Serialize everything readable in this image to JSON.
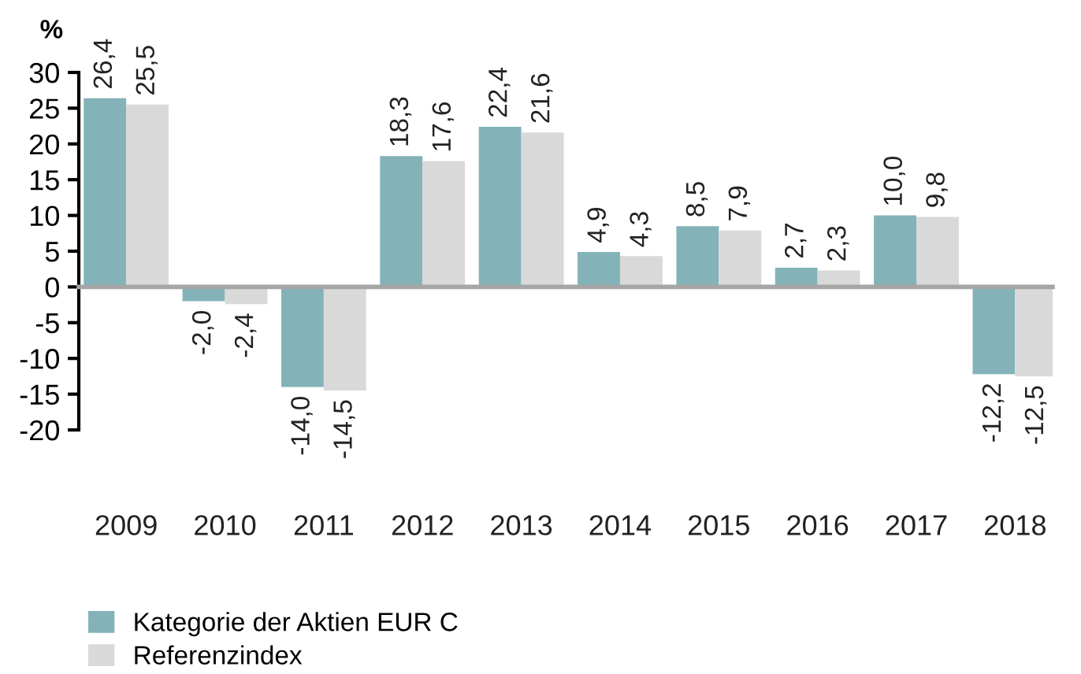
{
  "chart_data": {
    "type": "bar",
    "ylabel": "%",
    "categories": [
      "2009",
      "2010",
      "2011",
      "2012",
      "2013",
      "2014",
      "2015",
      "2016",
      "2017",
      "2018"
    ],
    "ylim": [
      -20,
      30
    ],
    "yticks": [
      -20,
      -15,
      -10,
      -5,
      0,
      5,
      10,
      15,
      20,
      25,
      30
    ],
    "series": [
      {
        "name": "Kategorie der Aktien EUR C",
        "color": "#83b3b9",
        "values": [
          26.4,
          -2.0,
          -14.0,
          18.3,
          22.4,
          4.9,
          8.5,
          2.7,
          10.0,
          -12.2
        ],
        "value_labels": [
          "26,4",
          "-2,0",
          "-14,0",
          "18,3",
          "22,4",
          "4,9",
          "8,5",
          "2,7",
          "10,0",
          "-12,2"
        ]
      },
      {
        "name": "Referenzindex",
        "color": "#d9d9d9",
        "values": [
          25.5,
          -2.4,
          -14.5,
          17.6,
          21.6,
          4.3,
          7.9,
          2.3,
          9.8,
          -12.5
        ],
        "value_labels": [
          "25,5",
          "-2,4",
          "-14,5",
          "17,6",
          "21,6",
          "4,3",
          "7,9",
          "2,3",
          "9,8",
          "-12,5"
        ]
      }
    ],
    "legend": "bottom"
  }
}
